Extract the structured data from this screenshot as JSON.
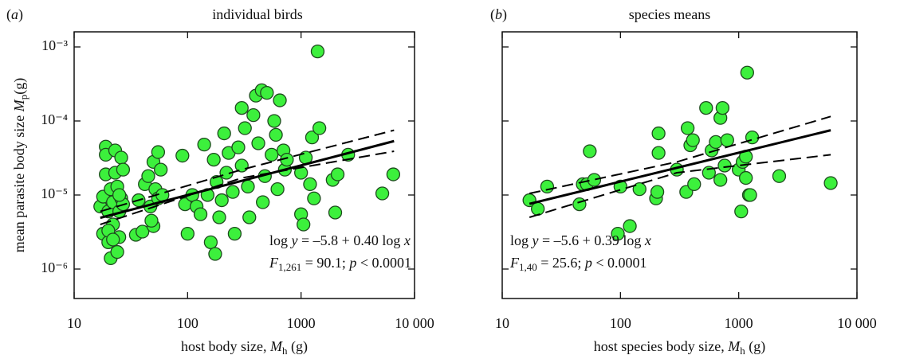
{
  "chart_data": [
    {
      "type": "scatter",
      "panel_label": [
        {
          "text": "("
        },
        {
          "text": "a",
          "italic": true
        },
        {
          "text": ")"
        }
      ],
      "title": "individual birds",
      "x_label": [
        {
          "text": "host body size, "
        },
        {
          "text": "M",
          "italic": true
        },
        {
          "text": "h",
          "sub": true
        },
        {
          "text": " (g)"
        }
      ],
      "y_label": [
        {
          "text": "mean parasite body size "
        },
        {
          "text": "M",
          "italic": true
        },
        {
          "text": "p",
          "sub": true
        },
        {
          "text": "(g)"
        }
      ],
      "x": [
        17,
        18,
        18,
        19,
        19,
        19,
        20,
        20,
        21,
        21,
        22,
        22,
        23,
        23,
        24,
        24,
        25,
        25,
        26,
        26,
        27,
        27,
        20,
        22,
        25,
        35,
        37,
        40,
        42,
        45,
        47,
        50,
        50,
        52,
        55,
        55,
        58,
        60,
        48,
        90,
        95,
        100,
        110,
        120,
        130,
        140,
        150,
        160,
        170,
        175,
        180,
        190,
        200,
        210,
        220,
        230,
        250,
        260,
        280,
        300,
        300,
        320,
        340,
        350,
        380,
        400,
        420,
        450,
        460,
        480,
        500,
        550,
        580,
        600,
        620,
        650,
        700,
        720,
        750,
        1000,
        1000,
        1050,
        1100,
        1200,
        1250,
        1300,
        1400,
        1450,
        1900,
        2000,
        2100,
        2600,
        5200,
        6500
      ],
      "values": [
        7e-06,
        3e-06,
        9.5e-06,
        4.5e-05,
        1.9e-05,
        3.5e-05,
        6e-06,
        2.3e-06,
        1.4e-06,
        1.2e-05,
        8e-06,
        4e-06,
        2e-05,
        4e-05,
        1.7e-06,
        1.3e-05,
        6e-06,
        2.7e-06,
        9e-06,
        3.2e-05,
        7.5e-06,
        2.2e-05,
        3.3e-06,
        2.5e-06,
        1e-05,
        2.9e-06,
        8.5e-06,
        3.2e-06,
        1.4e-05,
        1.8e-05,
        7e-06,
        2.8e-05,
        3.8e-06,
        1.2e-05,
        3.8e-05,
        9e-06,
        2.2e-05,
        1e-05,
        4.5e-06,
        3.4e-05,
        7.5e-06,
        3e-06,
        1e-05,
        7e-06,
        5.5e-06,
        4.8e-05,
        1e-05,
        2.3e-06,
        3e-05,
        1.6e-06,
        1.5e-05,
        5e-06,
        8.5e-06,
        6.8e-05,
        2e-05,
        3.7e-05,
        1.1e-05,
        3e-06,
        4.4e-05,
        0.00015,
        2.5e-05,
        8e-05,
        1.3e-05,
        5e-06,
        0.00012,
        0.00022,
        5e-05,
        0.00026,
        8e-06,
        1.8e-05,
        0.00024,
        3.5e-05,
        0.0001,
        6.5e-05,
        1.2e-05,
        0.00019,
        4e-05,
        2.2e-05,
        3e-05,
        5.5e-06,
        2e-05,
        4e-06,
        3.2e-05,
        1.4e-05,
        6e-05,
        9e-06,
        0.00087,
        8e-05,
        1.6e-05,
        5.8e-06,
        1.9e-05,
        3.5e-05,
        1.05e-05,
        1.9e-05
      ],
      "color": "#3cf03c",
      "edge_color": "#1e4a1e",
      "xlim": [
        10,
        10000
      ],
      "ylim": [
        4e-07,
        0.0016
      ],
      "log_x": true,
      "log_y": true,
      "xticks": [
        10,
        100,
        1000,
        {
          "value": 10000,
          "label": "10 000"
        }
      ],
      "yticks": [
        {
          "value": 1e-06,
          "label": "10⁻⁶"
        },
        {
          "value": 1e-05,
          "label": "10⁻⁵"
        },
        {
          "value": 0.0001,
          "label": "10⁻⁴"
        },
        {
          "value": 0.001,
          "label": "10⁻³"
        }
      ],
      "show_ytick_labels": true,
      "fit": {
        "x": [
          17,
          6600
        ],
        "values": [
          4.92e-06,
          5.35e-05
        ]
      },
      "ci_upper": {
        "x": [
          17,
          300,
          6600
        ],
        "values": [
          6e-06,
          2.2e-05,
          7.5e-05
        ]
      },
      "ci_lower": {
        "x": [
          17,
          300,
          6600
        ],
        "values": [
          4e-06,
          1.7e-05,
          3.9e-05
        ]
      },
      "annotations": [
        [
          {
            "text": "log "
          },
          {
            "text": "y",
            "italic": true
          },
          {
            "text": " = –5.8 + 0.40 log "
          },
          {
            "text": "x",
            "italic": true
          }
        ],
        [
          {
            "text": "F",
            "italic": true
          },
          {
            "text": "1,261",
            "sub": true
          },
          {
            "text": " = 90.1; "
          },
          {
            "text": "p",
            "italic": true
          },
          {
            "text": " < 0.0001"
          }
        ]
      ]
    },
    {
      "type": "scatter",
      "panel_label": [
        {
          "text": "("
        },
        {
          "text": "b",
          "italic": true
        },
        {
          "text": ")"
        }
      ],
      "title": "species means",
      "x_label": [
        {
          "text": "host species body size, "
        },
        {
          "text": "M",
          "italic": true
        },
        {
          "text": "h",
          "sub": true
        },
        {
          "text": " (g)"
        }
      ],
      "x": [
        17,
        20,
        24,
        45,
        48,
        52,
        55,
        60,
        95,
        100,
        120,
        145,
        200,
        205,
        210,
        210,
        300,
        360,
        370,
        390,
        410,
        420,
        530,
        560,
        590,
        640,
        700,
        730,
        760,
        800,
        1000,
        1050,
        1080,
        1150,
        1180,
        1220,
        1250,
        1300,
        1150,
        2200,
        6000,
        700
      ],
      "values": [
        8.5e-06,
        6.5e-06,
        1.3e-05,
        7.5e-06,
        1.4e-05,
        1.4e-05,
        3.9e-05,
        1.6e-05,
        3e-06,
        1.3e-05,
        3.8e-06,
        1.2e-05,
        9e-06,
        1.1e-05,
        6.8e-05,
        3.7e-05,
        2.2e-05,
        1.1e-05,
        8e-05,
        4.7e-05,
        5.5e-05,
        1.4e-05,
        0.00015,
        2e-05,
        4e-05,
        5.2e-05,
        0.00011,
        0.00015,
        2.5e-05,
        5.5e-05,
        2.2e-05,
        6e-06,
        2.8e-05,
        3.3e-05,
        0.00045,
        1e-05,
        1e-05,
        6e-05,
        1.7e-05,
        1.8e-05,
        1.45e-05,
        1.6e-05
      ],
      "color": "#3cf03c",
      "edge_color": "#1e4a1e",
      "xlim": [
        10,
        10000
      ],
      "ylim": [
        4e-07,
        0.0016
      ],
      "log_x": true,
      "log_y": true,
      "xticks": [
        10,
        100,
        1000,
        {
          "value": 10000,
          "label": "10 000"
        }
      ],
      "yticks": [
        1e-06,
        1e-05,
        0.0001,
        0.001
      ],
      "show_ytick_labels": false,
      "fit": {
        "x": [
          17,
          6000
        ],
        "values": [
          7.6e-06,
          7.5e-05
        ]
      },
      "ci_upper": {
        "x": [
          17,
          300,
          6000
        ],
        "values": [
          1.05e-05,
          2.8e-05,
          0.000115
        ]
      },
      "ci_lower": {
        "x": [
          17,
          300,
          6000
        ],
        "values": [
          5e-06,
          2e-05,
          3.5e-05
        ]
      },
      "annotations": [
        [
          {
            "text": "log "
          },
          {
            "text": "y",
            "italic": true
          },
          {
            "text": " = –5.6 + 0.39 log "
          },
          {
            "text": "x",
            "italic": true
          }
        ],
        [
          {
            "text": "F",
            "italic": true
          },
          {
            "text": "1,40",
            "sub": true
          },
          {
            "text": " = 25.6; "
          },
          {
            "text": "p",
            "italic": true
          },
          {
            "text": " < 0.0001"
          }
        ]
      ]
    }
  ]
}
